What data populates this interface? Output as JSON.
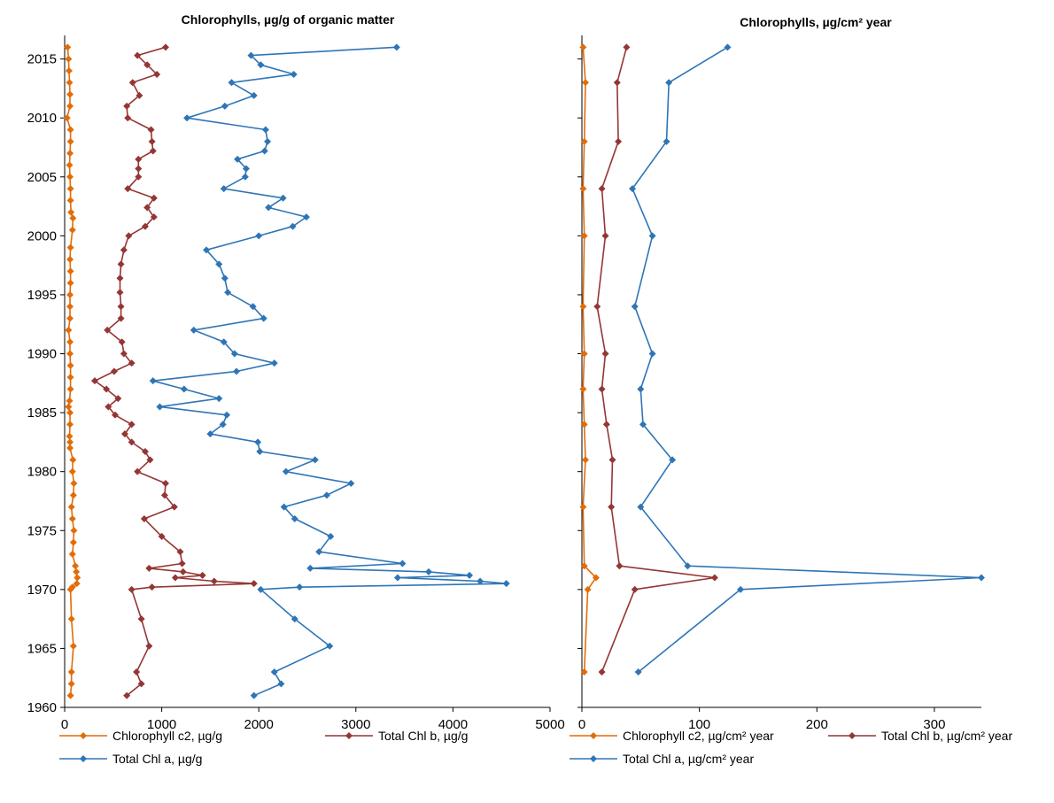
{
  "chart_data": [
    {
      "type": "line",
      "title": "Chlorophylls, µg/g of organic matter",
      "xlim": [
        0,
        5000
      ],
      "xticks": [
        0,
        1000,
        2000,
        3000,
        4000,
        5000
      ],
      "ylim": [
        1960,
        2017
      ],
      "yticks": [
        1960,
        1965,
        1970,
        1975,
        1980,
        1985,
        1990,
        1995,
        2000,
        2005,
        2010,
        2015
      ],
      "legend_position": "bottom",
      "series": [
        {
          "name": "Chlorophyll c2, µg/g",
          "color": "#E36C09",
          "points": [
            [
              30,
              2016.0
            ],
            [
              40,
              2015.0
            ],
            [
              45,
              2014.0
            ],
            [
              50,
              2013.0
            ],
            [
              55,
              2012.0
            ],
            [
              55,
              2011.0
            ],
            [
              25,
              2010.0
            ],
            [
              60,
              2009.0
            ],
            [
              60,
              2008.0
            ],
            [
              55,
              2007.0
            ],
            [
              50,
              2006.0
            ],
            [
              55,
              2005.0
            ],
            [
              60,
              2004.0
            ],
            [
              60,
              2003.0
            ],
            [
              65,
              2002.0
            ],
            [
              85,
              2001.5
            ],
            [
              80,
              2000.5
            ],
            [
              60,
              1999.0
            ],
            [
              55,
              1998.0
            ],
            [
              60,
              1997.0
            ],
            [
              60,
              1996.0
            ],
            [
              55,
              1995.0
            ],
            [
              55,
              1994.0
            ],
            [
              55,
              1993.0
            ],
            [
              40,
              1992.0
            ],
            [
              55,
              1991.0
            ],
            [
              55,
              1990.0
            ],
            [
              60,
              1989.0
            ],
            [
              60,
              1988.0
            ],
            [
              60,
              1987.0
            ],
            [
              50,
              1986.0
            ],
            [
              40,
              1985.5
            ],
            [
              55,
              1985.0
            ],
            [
              55,
              1984.0
            ],
            [
              50,
              1983.0
            ],
            [
              55,
              1982.5
            ],
            [
              55,
              1982.0
            ],
            [
              85,
              1981.0
            ],
            [
              80,
              1980.0
            ],
            [
              95,
              1979.0
            ],
            [
              90,
              1978.0
            ],
            [
              70,
              1977.0
            ],
            [
              80,
              1976.0
            ],
            [
              95,
              1975.0
            ],
            [
              90,
              1974.0
            ],
            [
              80,
              1973.0
            ],
            [
              110,
              1972.0
            ],
            [
              120,
              1971.5
            ],
            [
              130,
              1971.0
            ],
            [
              125,
              1970.5
            ],
            [
              80,
              1970.2
            ],
            [
              60,
              1970.0
            ],
            [
              70,
              1967.5
            ],
            [
              90,
              1965.2
            ],
            [
              70,
              1963.0
            ],
            [
              70,
              1962.0
            ],
            [
              60,
              1961.0
            ]
          ]
        },
        {
          "name": "Total Chl b, µg/g",
          "color": "#943634",
          "points": [
            [
              1040,
              2016.0
            ],
            [
              750,
              2015.3
            ],
            [
              850,
              2014.5
            ],
            [
              950,
              2013.7
            ],
            [
              700,
              2013.0
            ],
            [
              770,
              2011.9
            ],
            [
              640,
              2011.0
            ],
            [
              650,
              2010.0
            ],
            [
              890,
              2009.0
            ],
            [
              900,
              2008.0
            ],
            [
              910,
              2007.2
            ],
            [
              760,
              2006.5
            ],
            [
              760,
              2005.7
            ],
            [
              760,
              2005.0
            ],
            [
              650,
              2004.0
            ],
            [
              920,
              2003.2
            ],
            [
              850,
              2002.4
            ],
            [
              920,
              2001.6
            ],
            [
              830,
              2000.8
            ],
            [
              660,
              2000.0
            ],
            [
              610,
              1998.8
            ],
            [
              580,
              1997.6
            ],
            [
              570,
              1996.4
            ],
            [
              570,
              1995.2
            ],
            [
              580,
              1994.0
            ],
            [
              580,
              1993.0
            ],
            [
              440,
              1992.0
            ],
            [
              590,
              1991.0
            ],
            [
              610,
              1990.0
            ],
            [
              690,
              1989.2
            ],
            [
              510,
              1988.5
            ],
            [
              310,
              1987.7
            ],
            [
              430,
              1987.0
            ],
            [
              550,
              1986.2
            ],
            [
              450,
              1985.5
            ],
            [
              520,
              1984.8
            ],
            [
              690,
              1984.0
            ],
            [
              620,
              1983.2
            ],
            [
              690,
              1982.5
            ],
            [
              830,
              1981.7
            ],
            [
              880,
              1981.0
            ],
            [
              750,
              1980.0
            ],
            [
              1040,
              1979.0
            ],
            [
              1030,
              1978.0
            ],
            [
              1130,
              1977.0
            ],
            [
              820,
              1976.0
            ],
            [
              1000,
              1974.5
            ],
            [
              1190,
              1973.2
            ],
            [
              1210,
              1972.2
            ],
            [
              870,
              1971.8
            ],
            [
              1220,
              1971.5
            ],
            [
              1420,
              1971.2
            ],
            [
              1140,
              1971.0
            ],
            [
              1540,
              1970.7
            ],
            [
              1950,
              1970.5
            ],
            [
              900,
              1970.2
            ],
            [
              690,
              1970.0
            ],
            [
              790,
              1967.5
            ],
            [
              870,
              1965.2
            ],
            [
              740,
              1963.0
            ],
            [
              790,
              1962.0
            ],
            [
              640,
              1961.0
            ]
          ]
        },
        {
          "name": "Total Chl a, µg/g",
          "color": "#2E75B6",
          "points": [
            [
              3420,
              2016.0
            ],
            [
              1920,
              2015.3
            ],
            [
              2020,
              2014.5
            ],
            [
              2360,
              2013.7
            ],
            [
              1720,
              2013.0
            ],
            [
              1950,
              2011.9
            ],
            [
              1650,
              2011.0
            ],
            [
              1260,
              2010.0
            ],
            [
              2070,
              2009.0
            ],
            [
              2090,
              2008.0
            ],
            [
              2060,
              2007.2
            ],
            [
              1780,
              2006.5
            ],
            [
              1870,
              2005.7
            ],
            [
              1860,
              2005.0
            ],
            [
              1640,
              2004.0
            ],
            [
              2250,
              2003.2
            ],
            [
              2100,
              2002.4
            ],
            [
              2490,
              2001.6
            ],
            [
              2350,
              2000.8
            ],
            [
              2000,
              2000.0
            ],
            [
              1460,
              1998.8
            ],
            [
              1590,
              1997.6
            ],
            [
              1650,
              1996.4
            ],
            [
              1680,
              1995.2
            ],
            [
              1940,
              1994.0
            ],
            [
              2050,
              1993.0
            ],
            [
              1330,
              1992.0
            ],
            [
              1640,
              1991.0
            ],
            [
              1750,
              1990.0
            ],
            [
              2160,
              1989.2
            ],
            [
              1770,
              1988.5
            ],
            [
              910,
              1987.7
            ],
            [
              1230,
              1987.0
            ],
            [
              1590,
              1986.2
            ],
            [
              980,
              1985.5
            ],
            [
              1670,
              1984.8
            ],
            [
              1630,
              1984.0
            ],
            [
              1500,
              1983.2
            ],
            [
              1990,
              1982.5
            ],
            [
              2010,
              1981.7
            ],
            [
              2580,
              1981.0
            ],
            [
              2280,
              1980.0
            ],
            [
              2950,
              1979.0
            ],
            [
              2700,
              1978.0
            ],
            [
              2260,
              1977.0
            ],
            [
              2370,
              1976.0
            ],
            [
              2740,
              1974.5
            ],
            [
              2620,
              1973.2
            ],
            [
              3480,
              1972.2
            ],
            [
              2530,
              1971.8
            ],
            [
              3750,
              1971.5
            ],
            [
              4170,
              1971.2
            ],
            [
              3430,
              1971.0
            ],
            [
              4280,
              1970.7
            ],
            [
              4550,
              1970.5
            ],
            [
              2420,
              1970.2
            ],
            [
              2020,
              1970.0
            ],
            [
              2370,
              1967.5
            ],
            [
              2730,
              1965.2
            ],
            [
              2160,
              1963.0
            ],
            [
              2230,
              1962.0
            ],
            [
              1950,
              1961.0
            ]
          ]
        }
      ]
    },
    {
      "type": "line",
      "title": "Chlorophylls, µg/cm² year",
      "xlim": [
        0,
        340
      ],
      "xticks": [
        0,
        100,
        200,
        300
      ],
      "ylim": [
        1960,
        2017
      ],
      "yticks": [
        1960,
        1965,
        1970,
        1975,
        1980,
        1985,
        1990,
        1995,
        2000,
        2005,
        2010,
        2015
      ],
      "legend_position": "bottom",
      "series": [
        {
          "name": "Chlorophyll c2, µg/cm² year",
          "color": "#E36C09",
          "points": [
            [
              1,
              2016.0
            ],
            [
              3,
              2013.0
            ],
            [
              2,
              2008.0
            ],
            [
              1,
              2004.0
            ],
            [
              2,
              2000.0
            ],
            [
              1,
              1994.0
            ],
            [
              2,
              1990.0
            ],
            [
              1,
              1987.0
            ],
            [
              2,
              1984.0
            ],
            [
              3,
              1981.0
            ],
            [
              1,
              1977.0
            ],
            [
              2,
              1972.0
            ],
            [
              12,
              1971.0
            ],
            [
              5,
              1970.0
            ],
            [
              2,
              1963.0
            ]
          ]
        },
        {
          "name": "Total Chl b, µg/cm² year",
          "color": "#943634",
          "points": [
            [
              38,
              2016.0
            ],
            [
              30,
              2013.0
            ],
            [
              31,
              2008.0
            ],
            [
              17,
              2004.0
            ],
            [
              20,
              2000.0
            ],
            [
              13,
              1994.0
            ],
            [
              20,
              1990.0
            ],
            [
              17,
              1987.0
            ],
            [
              21,
              1984.0
            ],
            [
              26,
              1981.0
            ],
            [
              25,
              1977.0
            ],
            [
              32,
              1972.0
            ],
            [
              113,
              1971.0
            ],
            [
              45,
              1970.0
            ],
            [
              17,
              1963.0
            ]
          ]
        },
        {
          "name": "Total Chl a, µg/cm² year",
          "color": "#2E75B6",
          "points": [
            [
              124,
              2016.0
            ],
            [
              74,
              2013.0
            ],
            [
              72,
              2008.0
            ],
            [
              43,
              2004.0
            ],
            [
              60,
              2000.0
            ],
            [
              45,
              1994.0
            ],
            [
              60,
              1990.0
            ],
            [
              50,
              1987.0
            ],
            [
              52,
              1984.0
            ],
            [
              77,
              1981.0
            ],
            [
              50,
              1977.0
            ],
            [
              90,
              1972.0
            ],
            [
              340,
              1971.0
            ],
            [
              135,
              1970.0
            ],
            [
              48,
              1963.0
            ]
          ]
        }
      ]
    }
  ]
}
